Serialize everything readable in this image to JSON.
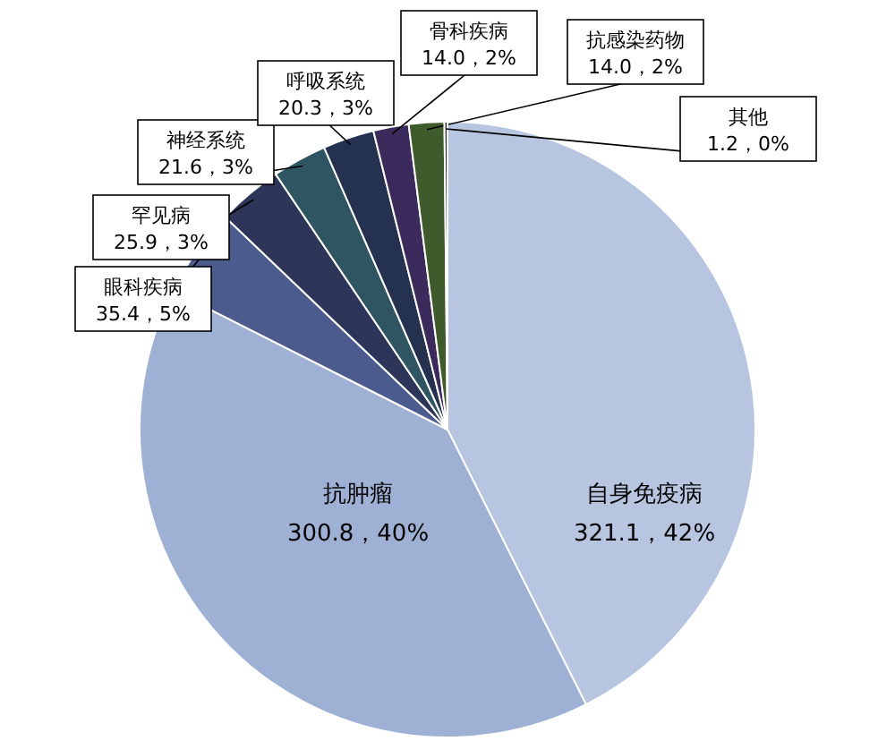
{
  "chart_data": {
    "type": "pie",
    "categories": [
      "自身免疫病",
      "抗肿瘤",
      "眼科疾病",
      "罕见病",
      "神经系统",
      "呼吸系统",
      "骨科疾病",
      "抗感染药物",
      "其他"
    ],
    "values": [
      321.1,
      300.8,
      35.4,
      25.9,
      21.6,
      20.3,
      14.0,
      14.0,
      1.2
    ],
    "value_labels": [
      "321.1，42%",
      "300.8，40%",
      "35.4，5%",
      "25.9，3%",
      "21.6，3%",
      "20.3，3%",
      "14.0，2%",
      "14.0，2%",
      "1.2，0%"
    ],
    "colors": [
      "#b8c5e0",
      "#9eb0d4",
      "#4b5b8e",
      "#2d3658",
      "#2f5462",
      "#243250",
      "#3b2a5c",
      "#3f5b2c",
      "#2a2f3a"
    ]
  }
}
